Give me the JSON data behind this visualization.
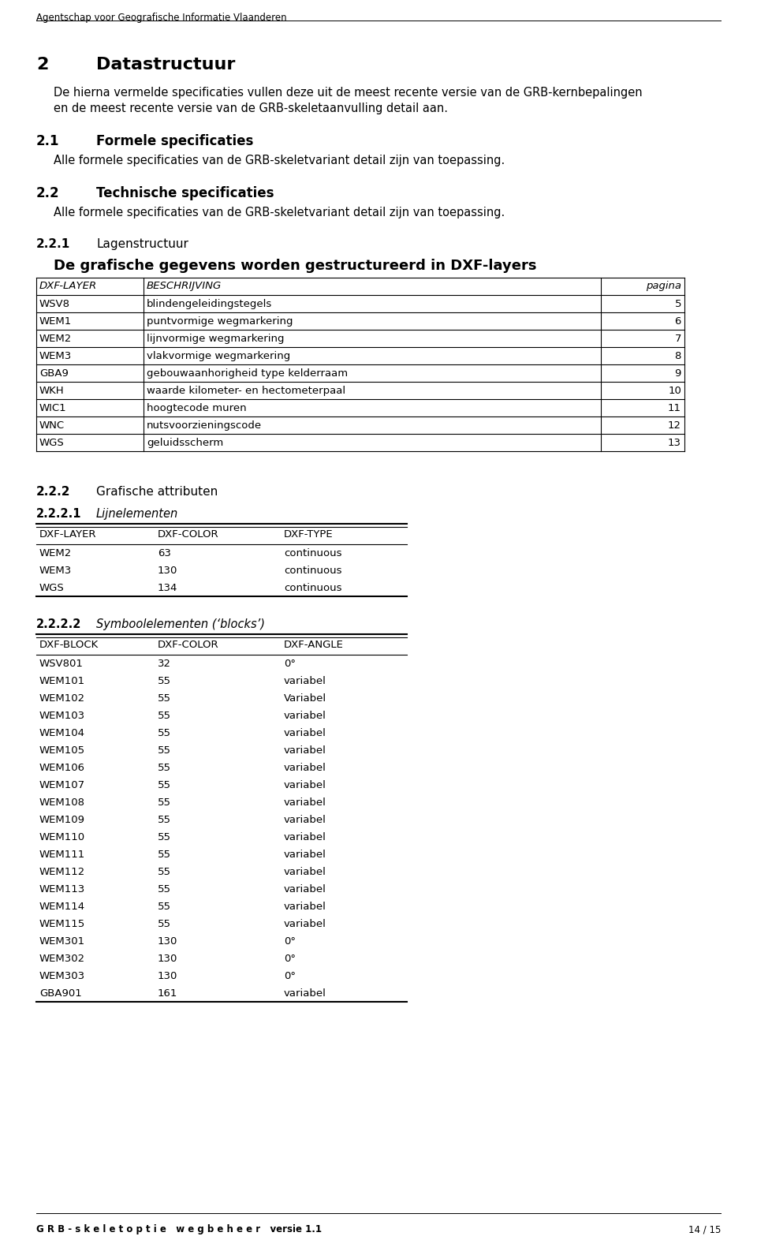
{
  "header": "Agentschap voor Geografische Informatie Vlaanderen",
  "footer_left": "G R B - s k e l e t o p t i e   w e g b e h e e r   versie 1.1",
  "footer_right": "14 / 15",
  "section2_body_line1": "De hierna vermelde specificaties vullen deze uit de meest recente versie van de GRB-kernbepalingen",
  "section2_body_line2": "en de meest recente versie van de GRB-skeletaanvulling detail aan.",
  "section21_body": "Alle formele specificaties van de GRB-skeletvariant detail zijn van toepassing.",
  "section22_body": "Alle formele specificaties van de GRB-skeletvariant detail zijn van toepassing.",
  "section221_subtitle": "De grafische gegevens worden gestructureerd in DXF-layers",
  "table1_headers": [
    "DXF-LAYER",
    "BESCHRIJVING",
    "pagina"
  ],
  "table1_rows": [
    [
      "WSV8",
      "blindengeleidingstegels",
      "5"
    ],
    [
      "WEM1",
      "puntvormige wegmarkering",
      "6"
    ],
    [
      "WEM2",
      "lijnvormige wegmarkering",
      "7"
    ],
    [
      "WEM3",
      "vlakvormige wegmarkering",
      "8"
    ],
    [
      "GBA9",
      "gebouwaanhorigheid type kelderraam",
      "9"
    ],
    [
      "WKH",
      "waarde kilometer- en hectometerpaal",
      "10"
    ],
    [
      "WIC1",
      "hoogtecode muren",
      "11"
    ],
    [
      "WNC",
      "nutsvoorzieningscode",
      "12"
    ],
    [
      "WGS",
      "geluidsscherm",
      "13"
    ]
  ],
  "table2_headers": [
    "DXF-LAYER",
    "DXF-COLOR",
    "DXF-TYPE"
  ],
  "table2_rows": [
    [
      "WEM2",
      "63",
      "continuous"
    ],
    [
      "WEM3",
      "130",
      "continuous"
    ],
    [
      "WGS",
      "134",
      "continuous"
    ]
  ],
  "table3_headers": [
    "DXF-BLOCK",
    "DXF-COLOR",
    "DXF-ANGLE"
  ],
  "table3_rows": [
    [
      "WSV801",
      "32",
      "0°"
    ],
    [
      "WEM101",
      "55",
      "variabel"
    ],
    [
      "WEM102",
      "55",
      "Variabel"
    ],
    [
      "WEM103",
      "55",
      "variabel"
    ],
    [
      "WEM104",
      "55",
      "variabel"
    ],
    [
      "WEM105",
      "55",
      "variabel"
    ],
    [
      "WEM106",
      "55",
      "variabel"
    ],
    [
      "WEM107",
      "55",
      "variabel"
    ],
    [
      "WEM108",
      "55",
      "variabel"
    ],
    [
      "WEM109",
      "55",
      "variabel"
    ],
    [
      "WEM110",
      "55",
      "variabel"
    ],
    [
      "WEM111",
      "55",
      "variabel"
    ],
    [
      "WEM112",
      "55",
      "variabel"
    ],
    [
      "WEM113",
      "55",
      "variabel"
    ],
    [
      "WEM114",
      "55",
      "variabel"
    ],
    [
      "WEM115",
      "55",
      "variabel"
    ],
    [
      "WEM301",
      "130",
      "0°"
    ],
    [
      "WEM302",
      "130",
      "0°"
    ],
    [
      "WEM303",
      "130",
      "0°"
    ],
    [
      "GBA901",
      "161",
      "variabel"
    ]
  ],
  "bg_color": "#ffffff"
}
